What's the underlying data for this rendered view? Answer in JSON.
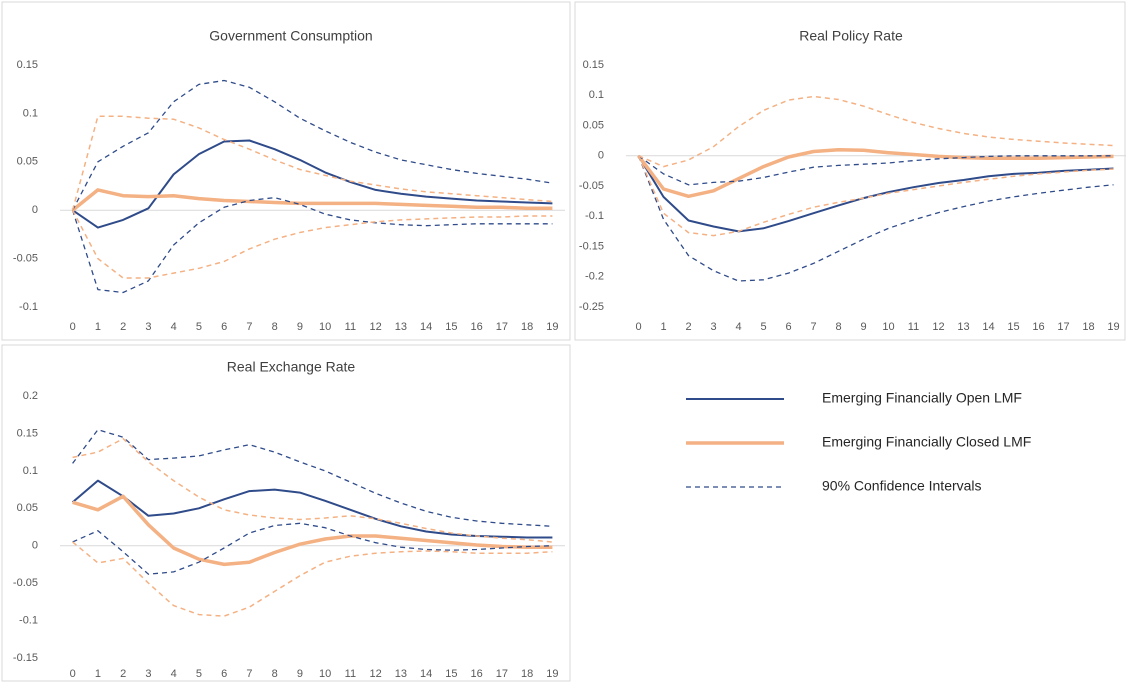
{
  "chart_data": [
    {
      "type": "line",
      "title": "Government Consumption",
      "categories": [
        0,
        1,
        2,
        3,
        4,
        5,
        6,
        7,
        8,
        9,
        10,
        11,
        12,
        13,
        14,
        15,
        16,
        17,
        18,
        19
      ],
      "ylim": [
        -0.1,
        0.15
      ],
      "yticks": [
        -0.1,
        -0.05,
        0,
        0.05,
        0.1,
        0.15
      ],
      "series": [
        {
          "name": "Emerging Financially Open LMF",
          "color": "#2f4b8a",
          "dash": false,
          "line_width": 2,
          "values": [
            0,
            -0.018,
            -0.01,
            0.002,
            0.037,
            0.058,
            0.071,
            0.072,
            0.063,
            0.052,
            0.039,
            0.029,
            0.021,
            0.017,
            0.014,
            0.012,
            0.01,
            0.009,
            0.008,
            0.007
          ]
        },
        {
          "name": "Emerging Financially Closed LMF",
          "color": "#f4b183",
          "dash": false,
          "line_width": 3.5,
          "values": [
            0,
            0.021,
            0.015,
            0.014,
            0.015,
            0.012,
            0.01,
            0.009,
            0.008,
            0.007,
            0.007,
            0.007,
            0.007,
            0.006,
            0.005,
            0.004,
            0.003,
            0.003,
            0.002,
            0.002
          ]
        },
        {
          "name": "90% Confidence Intervals",
          "color": "#2f4b8a",
          "dash": true,
          "line_width": 1.3,
          "values": [
            0,
            0.05,
            0.066,
            0.08,
            0.112,
            0.13,
            0.134,
            0.127,
            0.112,
            0.095,
            0.082,
            0.07,
            0.06,
            0.052,
            0.047,
            0.042,
            0.038,
            0.035,
            0.032,
            0.028
          ]
        },
        {
          "name": "90% Confidence Intervals",
          "color": "#2f4b8a",
          "dash": true,
          "line_width": 1.3,
          "values": [
            0,
            -0.082,
            -0.085,
            -0.073,
            -0.036,
            -0.013,
            0.003,
            0.01,
            0.013,
            0.006,
            -0.004,
            -0.01,
            -0.013,
            -0.015,
            -0.016,
            -0.015,
            -0.014,
            -0.014,
            -0.014,
            -0.014
          ]
        },
        {
          "name": "90% Confidence Intervals",
          "color": "#f4b183",
          "dash": true,
          "line_width": 1.5,
          "values": [
            0,
            0.097,
            0.097,
            0.095,
            0.094,
            0.085,
            0.073,
            0.063,
            0.052,
            0.042,
            0.036,
            0.03,
            0.026,
            0.022,
            0.019,
            0.017,
            0.015,
            0.013,
            0.011,
            0.009
          ]
        },
        {
          "name": "90% Confidence Intervals",
          "color": "#f4b183",
          "dash": true,
          "line_width": 1.5,
          "values": [
            0,
            -0.05,
            -0.07,
            -0.07,
            -0.065,
            -0.06,
            -0.053,
            -0.04,
            -0.03,
            -0.023,
            -0.018,
            -0.015,
            -0.012,
            -0.01,
            -0.009,
            -0.008,
            -0.007,
            -0.007,
            -0.006,
            -0.006
          ]
        }
      ]
    },
    {
      "type": "line",
      "title": "Real Policy Rate",
      "categories": [
        0,
        1,
        2,
        3,
        4,
        5,
        6,
        7,
        8,
        9,
        10,
        11,
        12,
        13,
        14,
        15,
        16,
        17,
        18,
        19
      ],
      "ylim": [
        -0.25,
        0.15
      ],
      "yticks": [
        -0.25,
        -0.2,
        -0.15,
        -0.1,
        -0.05,
        0,
        0.05,
        0.1,
        0.15
      ],
      "series": [
        {
          "name": "Emerging Financially Open LMF",
          "color": "#2f4b8a",
          "dash": false,
          "line_width": 2,
          "values": [
            0,
            -0.068,
            -0.107,
            -0.117,
            -0.125,
            -0.12,
            -0.108,
            -0.095,
            -0.082,
            -0.07,
            -0.06,
            -0.052,
            -0.045,
            -0.04,
            -0.034,
            -0.03,
            -0.028,
            -0.025,
            -0.023,
            -0.021
          ]
        },
        {
          "name": "Emerging Financially Closed LMF",
          "color": "#f4b183",
          "dash": false,
          "line_width": 3.5,
          "values": [
            0,
            -0.055,
            -0.067,
            -0.058,
            -0.038,
            -0.018,
            -0.002,
            0.007,
            0.01,
            0.009,
            0.005,
            0.002,
            -0.001,
            -0.003,
            -0.004,
            -0.004,
            -0.004,
            -0.003,
            -0.002,
            -0.001
          ]
        },
        {
          "name": "90% Confidence Intervals",
          "color": "#2f4b8a",
          "dash": true,
          "line_width": 1.3,
          "values": [
            0,
            -0.03,
            -0.048,
            -0.044,
            -0.042,
            -0.036,
            -0.027,
            -0.019,
            -0.016,
            -0.014,
            -0.012,
            -0.008,
            -0.005,
            -0.003,
            -0.001,
            0,
            0,
            0,
            0,
            0
          ]
        },
        {
          "name": "90% Confidence Intervals",
          "color": "#2f4b8a",
          "dash": true,
          "line_width": 1.3,
          "values": [
            0,
            -0.105,
            -0.165,
            -0.19,
            -0.207,
            -0.205,
            -0.194,
            -0.178,
            -0.158,
            -0.138,
            -0.12,
            -0.106,
            -0.094,
            -0.084,
            -0.075,
            -0.068,
            -0.062,
            -0.057,
            -0.052,
            -0.048
          ]
        },
        {
          "name": "90% Confidence Intervals",
          "color": "#f4b183",
          "dash": true,
          "line_width": 1.5,
          "values": [
            0,
            -0.018,
            -0.007,
            0.015,
            0.048,
            0.075,
            0.092,
            0.098,
            0.093,
            0.082,
            0.068,
            0.055,
            0.045,
            0.037,
            0.031,
            0.027,
            0.024,
            0.021,
            0.019,
            0.017
          ]
        },
        {
          "name": "90% Confidence Intervals",
          "color": "#f4b183",
          "dash": true,
          "line_width": 1.5,
          "values": [
            0,
            -0.095,
            -0.127,
            -0.132,
            -0.125,
            -0.11,
            -0.097,
            -0.085,
            -0.077,
            -0.07,
            -0.062,
            -0.056,
            -0.05,
            -0.044,
            -0.039,
            -0.034,
            -0.03,
            -0.027,
            -0.024,
            -0.022
          ]
        }
      ]
    },
    {
      "type": "line",
      "title": "Real Exchange Rate",
      "categories": [
        0,
        1,
        2,
        3,
        4,
        5,
        6,
        7,
        8,
        9,
        10,
        11,
        12,
        13,
        14,
        15,
        16,
        17,
        18,
        19
      ],
      "ylim": [
        -0.15,
        0.2
      ],
      "yticks": [
        -0.15,
        -0.1,
        -0.05,
        0,
        0.05,
        0.1,
        0.15,
        0.2
      ],
      "series": [
        {
          "name": "Emerging Financially Open LMF",
          "color": "#2f4b8a",
          "dash": false,
          "line_width": 2,
          "values": [
            0.058,
            0.087,
            0.066,
            0.04,
            0.043,
            0.05,
            0.062,
            0.073,
            0.075,
            0.071,
            0.06,
            0.048,
            0.036,
            0.026,
            0.019,
            0.015,
            0.013,
            0.012,
            0.011,
            0.011
          ]
        },
        {
          "name": "Emerging Financially Closed LMF",
          "color": "#f4b183",
          "dash": false,
          "line_width": 3.5,
          "values": [
            0.058,
            0.048,
            0.066,
            0.028,
            -0.003,
            -0.018,
            -0.025,
            -0.022,
            -0.009,
            0.002,
            0.009,
            0.013,
            0.013,
            0.01,
            0.007,
            0.004,
            0.001,
            -0.001,
            -0.002,
            -0.002
          ]
        },
        {
          "name": "90% Confidence Intervals",
          "color": "#2f4b8a",
          "dash": true,
          "line_width": 1.3,
          "values": [
            0.11,
            0.155,
            0.145,
            0.115,
            0.117,
            0.12,
            0.128,
            0.135,
            0.125,
            0.112,
            0.1,
            0.085,
            0.07,
            0.057,
            0.046,
            0.038,
            0.033,
            0.03,
            0.028,
            0.026
          ]
        },
        {
          "name": "90% Confidence Intervals",
          "color": "#2f4b8a",
          "dash": true,
          "line_width": 1.3,
          "values": [
            0.005,
            0.02,
            -0.008,
            -0.038,
            -0.035,
            -0.022,
            -0.003,
            0.017,
            0.027,
            0.03,
            0.024,
            0.013,
            0.004,
            -0.002,
            -0.005,
            -0.006,
            -0.005,
            -0.003,
            -0.001,
            0
          ]
        },
        {
          "name": "90% Confidence Intervals",
          "color": "#f4b183",
          "dash": true,
          "line_width": 1.5,
          "values": [
            0.118,
            0.125,
            0.143,
            0.112,
            0.087,
            0.065,
            0.048,
            0.041,
            0.037,
            0.035,
            0.037,
            0.04,
            0.036,
            0.03,
            0.023,
            0.017,
            0.013,
            0.01,
            0.008,
            0.005
          ]
        },
        {
          "name": "90% Confidence Intervals",
          "color": "#f4b183",
          "dash": true,
          "line_width": 1.5,
          "values": [
            0.005,
            -0.023,
            -0.017,
            -0.05,
            -0.08,
            -0.092,
            -0.094,
            -0.082,
            -0.061,
            -0.04,
            -0.022,
            -0.014,
            -0.01,
            -0.008,
            -0.007,
            -0.008,
            -0.01,
            -0.01,
            -0.01,
            -0.008
          ]
        }
      ]
    }
  ]
}
